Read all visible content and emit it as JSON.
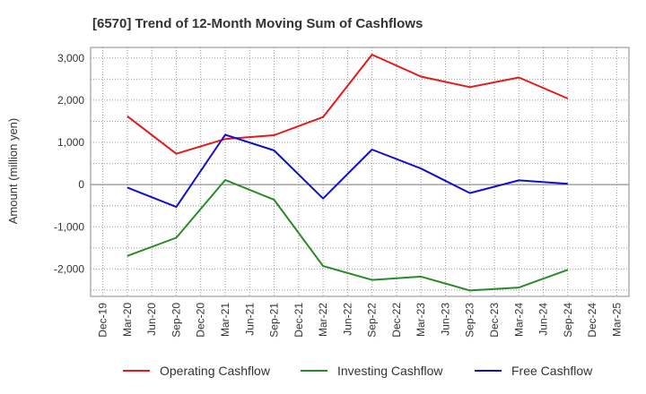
{
  "chart_data": {
    "type": "line",
    "title": "[6570]  Trend of 12-Month Moving Sum of Cashflows",
    "ylabel": "Amount (million yen)",
    "xlabel": "",
    "x": [
      "Dec-19",
      "Mar-20",
      "Jun-20",
      "Sep-20",
      "Dec-20",
      "Mar-21",
      "Jun-21",
      "Sep-21",
      "Dec-21",
      "Mar-22",
      "Jun-22",
      "Sep-22",
      "Dec-22",
      "Mar-23",
      "Jun-23",
      "Sep-23",
      "Dec-23",
      "Mar-24",
      "Jun-24",
      "Sep-24",
      "Dec-24",
      "Mar-25"
    ],
    "y_ticks": [
      3000,
      2000,
      1000,
      0,
      -1000,
      -2000
    ],
    "y_tick_labels": [
      "3,000",
      "2,000",
      "1,000",
      "0",
      "-1,000",
      "-2,000"
    ],
    "ylim": [
      -2650,
      3250
    ],
    "grid": true,
    "legend_position": "bottom",
    "series": [
      {
        "name": "Operating Cashflow",
        "color": "#e31a1c",
        "points": [
          [
            "Mar-20",
            1620
          ],
          [
            "Sep-20",
            730
          ],
          [
            "Mar-21",
            1080
          ],
          [
            "Sep-21",
            1170
          ],
          [
            "Mar-22",
            1600
          ],
          [
            "Sep-22",
            3080
          ],
          [
            "Mar-23",
            2560
          ],
          [
            "Sep-23",
            2310
          ],
          [
            "Mar-24",
            2540
          ],
          [
            "Sep-24",
            2040
          ]
        ]
      },
      {
        "name": "Investing Cashflow",
        "color": "#2a8a2a",
        "points": [
          [
            "Mar-20",
            -1690
          ],
          [
            "Sep-20",
            -1260
          ],
          [
            "Mar-21",
            110
          ],
          [
            "Sep-21",
            -360
          ],
          [
            "Mar-22",
            -1930
          ],
          [
            "Sep-22",
            -2260
          ],
          [
            "Mar-23",
            -2180
          ],
          [
            "Sep-23",
            -2510
          ],
          [
            "Mar-24",
            -2440
          ],
          [
            "Sep-24",
            -2020
          ]
        ]
      },
      {
        "name": "Free Cashflow",
        "color": "#1010cc",
        "points": [
          [
            "Mar-20",
            -70
          ],
          [
            "Sep-20",
            -530
          ],
          [
            "Mar-21",
            1180
          ],
          [
            "Sep-21",
            810
          ],
          [
            "Mar-22",
            -330
          ],
          [
            "Sep-22",
            830
          ],
          [
            "Mar-23",
            380
          ],
          [
            "Sep-23",
            -200
          ],
          [
            "Mar-24",
            100
          ],
          [
            "Sep-24",
            20
          ]
        ]
      }
    ]
  }
}
